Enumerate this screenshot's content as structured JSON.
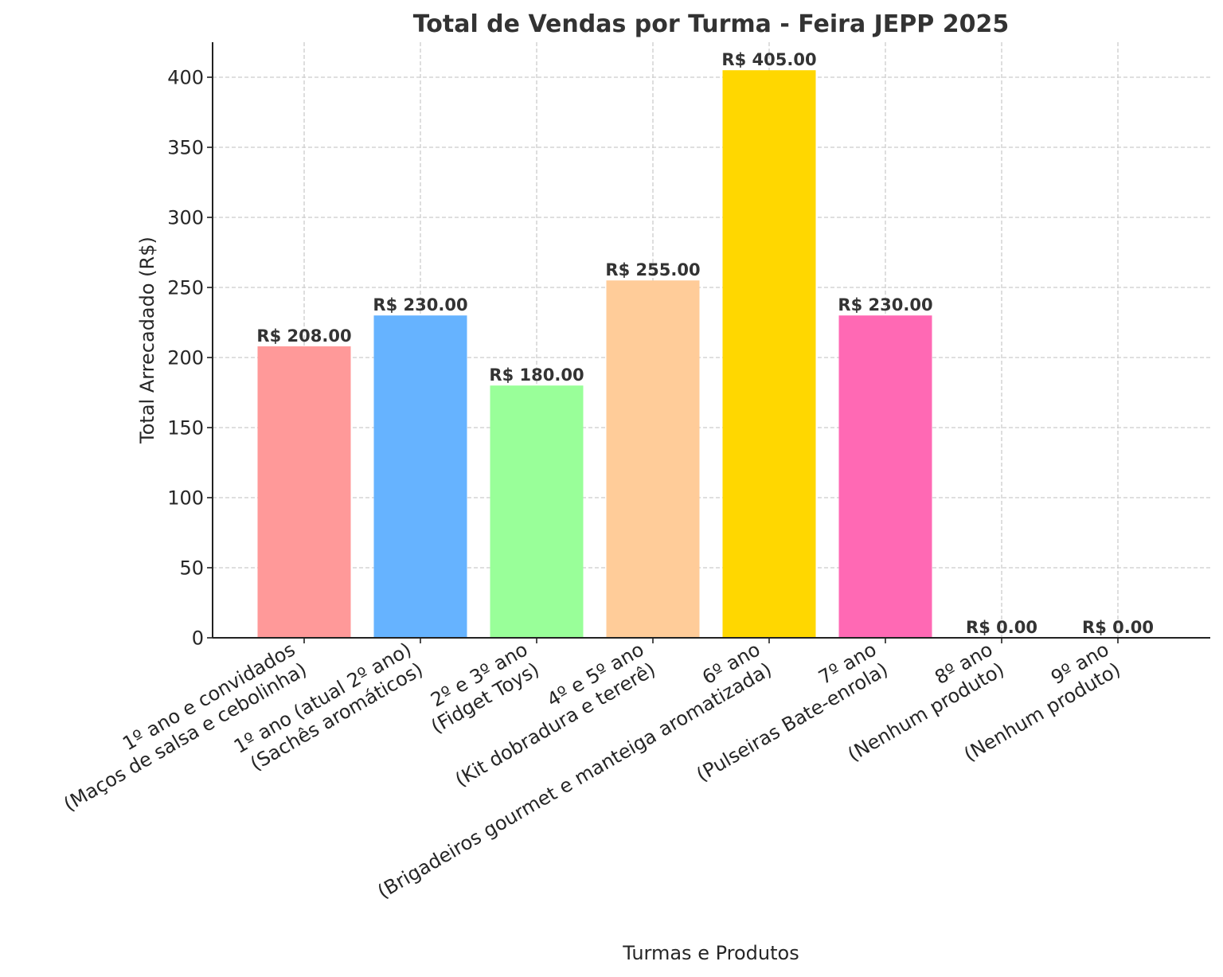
{
  "chart_data": {
    "type": "bar",
    "title": "Total de Vendas por Turma - Feira JEPP 2025",
    "xlabel": "Turmas e Produtos",
    "ylabel": "Total Arrecadado (R$)",
    "ylim": [
      0,
      425
    ],
    "yticks": [
      0,
      50,
      100,
      150,
      200,
      250,
      300,
      350,
      400
    ],
    "grid": true,
    "categories": [
      [
        "1º ano e convidados",
        "(Maços de salsa e cebolinha)"
      ],
      [
        "1º ano (atual 2º ano)",
        "(Sachês aromáticos)"
      ],
      [
        "2º e 3º ano",
        "(Fidget Toys)"
      ],
      [
        "4º e 5º ano",
        "(Kit dobradura e tererê)"
      ],
      [
        "6º ano",
        "(Brigadeiros gourmet e manteiga aromatizada)"
      ],
      [
        "7º ano",
        "(Pulseiras Bate-enrola)"
      ],
      [
        "8º ano",
        "(Nenhum produto)"
      ],
      [
        "9º ano",
        "(Nenhum produto)"
      ]
    ],
    "values": [
      208,
      230,
      180,
      255,
      405,
      230,
      0,
      0
    ],
    "value_labels": [
      "R$ 208.00",
      "R$ 230.00",
      "R$ 180.00",
      "R$ 255.00",
      "R$ 405.00",
      "R$ 230.00",
      "R$ 0.00",
      "R$ 0.00"
    ],
    "colors": [
      "#ff9999",
      "#66b3ff",
      "#99ff99",
      "#ffcc99",
      "#ffd700",
      "#ff69b4",
      "#c2c2f0",
      "#ffb3e6"
    ]
  }
}
